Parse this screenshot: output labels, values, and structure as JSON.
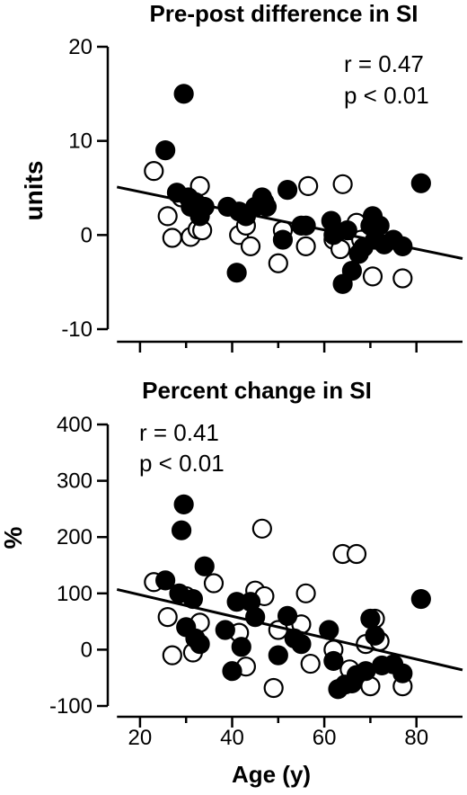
{
  "chart_data": [
    {
      "type": "scatter",
      "title": "Pre-post difference in SI",
      "xlabel": "",
      "ylabel": "units",
      "xlim": [
        13,
        90
      ],
      "ylim": [
        -10,
        20
      ],
      "x_ticks": [
        "20",
        "40",
        "60",
        "80"
      ],
      "y_ticks": [
        "20",
        "10",
        "0",
        "-10"
      ],
      "annotation": [
        "r = 0.47",
        "p < 0.01"
      ],
      "annotation_position": "top-right",
      "regression": {
        "x": [
          15,
          90
        ],
        "y": [
          5.1,
          -2.5
        ]
      },
      "series": [
        {
          "marker": "filled-circle",
          "points": [
            [
              25.5,
              9
            ],
            [
              29.5,
              15
            ],
            [
              28,
              4.5
            ],
            [
              30.5,
              4
            ],
            [
              31,
              3
            ],
            [
              32,
              3.5
            ],
            [
              33,
              2
            ],
            [
              34,
              3
            ],
            [
              39,
              3
            ],
            [
              41,
              -4
            ],
            [
              41.5,
              2.5
            ],
            [
              43,
              2
            ],
            [
              45,
              3
            ],
            [
              46.5,
              4
            ],
            [
              47.5,
              3
            ],
            [
              51,
              -0.5
            ],
            [
              52,
              4.8
            ],
            [
              55,
              1
            ],
            [
              56,
              1
            ],
            [
              61.5,
              1.5
            ],
            [
              62,
              0
            ],
            [
              64,
              -5.2
            ],
            [
              65,
              0.5
            ],
            [
              66,
              -3.8
            ],
            [
              67.5,
              -2
            ],
            [
              68.5,
              -1.3
            ],
            [
              70,
              1
            ],
            [
              70.5,
              2
            ],
            [
              71,
              -0.5
            ],
            [
              72,
              1
            ],
            [
              73,
              -1
            ],
            [
              75,
              -0.5
            ],
            [
              77,
              -1.2
            ],
            [
              81,
              5.5
            ]
          ]
        },
        {
          "marker": "open-circle",
          "points": [
            [
              23,
              6.8
            ],
            [
              26,
              2
            ],
            [
              27,
              -0.3
            ],
            [
              29,
              4
            ],
            [
              31,
              -0.2
            ],
            [
              32.5,
              0.6
            ],
            [
              33,
              5.2
            ],
            [
              33.5,
              0.5
            ],
            [
              41.5,
              0
            ],
            [
              43,
              1
            ],
            [
              44,
              -1.2
            ],
            [
              47,
              3.5
            ],
            [
              50,
              -3
            ],
            [
              51,
              0.5
            ],
            [
              56,
              -1.2
            ],
            [
              56.5,
              5.2
            ],
            [
              62,
              -0.5
            ],
            [
              63.5,
              -1.5
            ],
            [
              64,
              5.4
            ],
            [
              66,
              0.5
            ],
            [
              67,
              1.3
            ],
            [
              68,
              -0.5
            ],
            [
              70.5,
              -4.4
            ],
            [
              77,
              -4.6
            ]
          ]
        }
      ]
    },
    {
      "type": "scatter",
      "title": "Percent change in SI",
      "xlabel": "Age (y)",
      "ylabel": "%",
      "xlim": [
        13,
        90
      ],
      "ylim": [
        -100,
        400
      ],
      "x_ticks": [
        "20",
        "40",
        "60",
        "80"
      ],
      "y_ticks": [
        "400",
        "300",
        "200",
        "100",
        "0",
        "-100"
      ],
      "annotation": [
        "r = 0.41",
        "p < 0.01"
      ],
      "annotation_position": "top-left",
      "regression": {
        "x": [
          15,
          90
        ],
        "y": [
          107,
          -36
        ]
      },
      "series": [
        {
          "marker": "filled-circle",
          "points": [
            [
              25.5,
              123
            ],
            [
              29.5,
              258
            ],
            [
              29,
              212
            ],
            [
              28.5,
              100
            ],
            [
              30,
              40
            ],
            [
              31.5,
              90
            ],
            [
              32,
              20
            ],
            [
              33,
              10
            ],
            [
              34,
              148
            ],
            [
              38.5,
              35
            ],
            [
              40,
              -38
            ],
            [
              41,
              85
            ],
            [
              42,
              5
            ],
            [
              44,
              85
            ],
            [
              45,
              58
            ],
            [
              50,
              -10
            ],
            [
              52,
              60
            ],
            [
              53.5,
              20
            ],
            [
              55,
              10
            ],
            [
              61,
              35
            ],
            [
              62,
              -20
            ],
            [
              63,
              -70
            ],
            [
              64.5,
              -62
            ],
            [
              66,
              -60
            ],
            [
              67,
              -45
            ],
            [
              69,
              -38
            ],
            [
              70,
              55
            ],
            [
              71,
              25
            ],
            [
              72.5,
              -28
            ],
            [
              75,
              -26
            ],
            [
              77,
              -42
            ],
            [
              81,
              90
            ]
          ]
        },
        {
          "marker": "open-circle",
          "points": [
            [
              23,
              120
            ],
            [
              26,
              58
            ],
            [
              27,
              -10
            ],
            [
              30,
              95
            ],
            [
              31.5,
              -5
            ],
            [
              33,
              48
            ],
            [
              36,
              118
            ],
            [
              41.5,
              30
            ],
            [
              43,
              -30
            ],
            [
              45,
              105
            ],
            [
              46.5,
              215
            ],
            [
              47,
              95
            ],
            [
              49,
              -68
            ],
            [
              50,
              35
            ],
            [
              55,
              45
            ],
            [
              56,
              100
            ],
            [
              57,
              -25
            ],
            [
              62,
              0
            ],
            [
              64,
              170
            ],
            [
              65.5,
              -35
            ],
            [
              67,
              170
            ],
            [
              69,
              10
            ],
            [
              70,
              -65
            ],
            [
              71,
              55
            ],
            [
              72,
              15
            ],
            [
              77,
              -65
            ]
          ]
        }
      ]
    }
  ]
}
